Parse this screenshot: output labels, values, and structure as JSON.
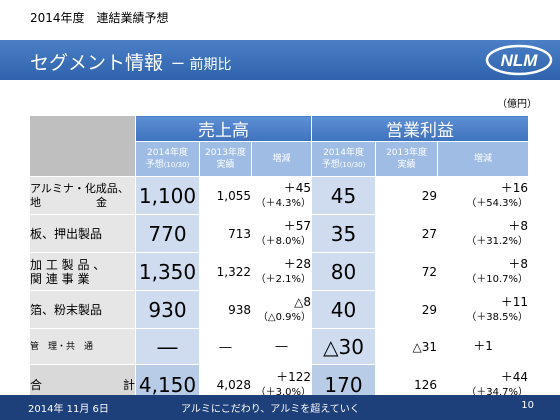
{
  "top_label": "2014年度　連結業績予想",
  "header": {
    "title": "セグメント情報",
    "subtitle": "ー 前期比"
  },
  "unit": "（億円）",
  "groups": {
    "sales": "売上高",
    "profit": "営業利益"
  },
  "subheaders": {
    "forecast": [
      "2014年度",
      "予想",
      "(10/30)"
    ],
    "actual": [
      "2013年度",
      "実績"
    ],
    "change": "増減"
  },
  "rows": [
    {
      "name": [
        "アルミナ・化成品、",
        "地　　　　　金"
      ],
      "sales": "1,100",
      "sales_prev": "1,055",
      "sales_chg": "＋45",
      "sales_pct": "（＋4.3%）",
      "profit": "45",
      "profit_prev": "29",
      "profit_chg": "＋16",
      "profit_pct": "（＋54.3%）"
    },
    {
      "name": [
        "板、押出製品"
      ],
      "sales": "770",
      "sales_prev": "713",
      "sales_chg": "＋57",
      "sales_pct": "（＋8.0%）",
      "profit": "35",
      "profit_prev": "27",
      "profit_chg": "＋8",
      "profit_pct": "（＋31.2%）"
    },
    {
      "name": [
        "加 工 製 品 、",
        "関 連 事 業"
      ],
      "sales": "1,350",
      "sales_prev": "1,322",
      "sales_chg": "＋28",
      "sales_pct": "（＋2.1%）",
      "profit": "80",
      "profit_prev": "72",
      "profit_chg": "＋8",
      "profit_pct": "（＋10.7%）"
    },
    {
      "name": [
        "箔、粉末製品"
      ],
      "sales": "930",
      "sales_prev": "938",
      "sales_chg": "△8",
      "sales_pct": "（△0.9%）",
      "profit": "40",
      "profit_prev": "29",
      "profit_chg": "＋11",
      "profit_pct": "（＋38.5%）"
    },
    {
      "name": [
        "管　理・共　通"
      ],
      "sales": "―",
      "sales_prev": "―",
      "sales_chg": "―",
      "sales_pct": "",
      "profit": "△30",
      "profit_prev": "△31",
      "profit_chg": "＋1",
      "profit_pct": ""
    }
  ],
  "total": {
    "name_left": "合",
    "name_right": "計",
    "sales": "4,150",
    "sales_prev": "4,028",
    "sales_chg": "＋122",
    "sales_pct": "（＋3.0%）",
    "profit": "170",
    "profit_prev": "126",
    "profit_chg": "＋44",
    "profit_pct": "（＋34.7%）"
  },
  "footer": {
    "date": "2014年 11月 6日",
    "slogan": "アルミにこだわり、アルミを超えていく",
    "page": "10"
  },
  "logo_text": "NLM",
  "colors": {
    "header": "#2f63ad",
    "forecast_cell": "#cfdcef",
    "subheader": "#9fbce5",
    "footer": "#1d3f7a"
  }
}
